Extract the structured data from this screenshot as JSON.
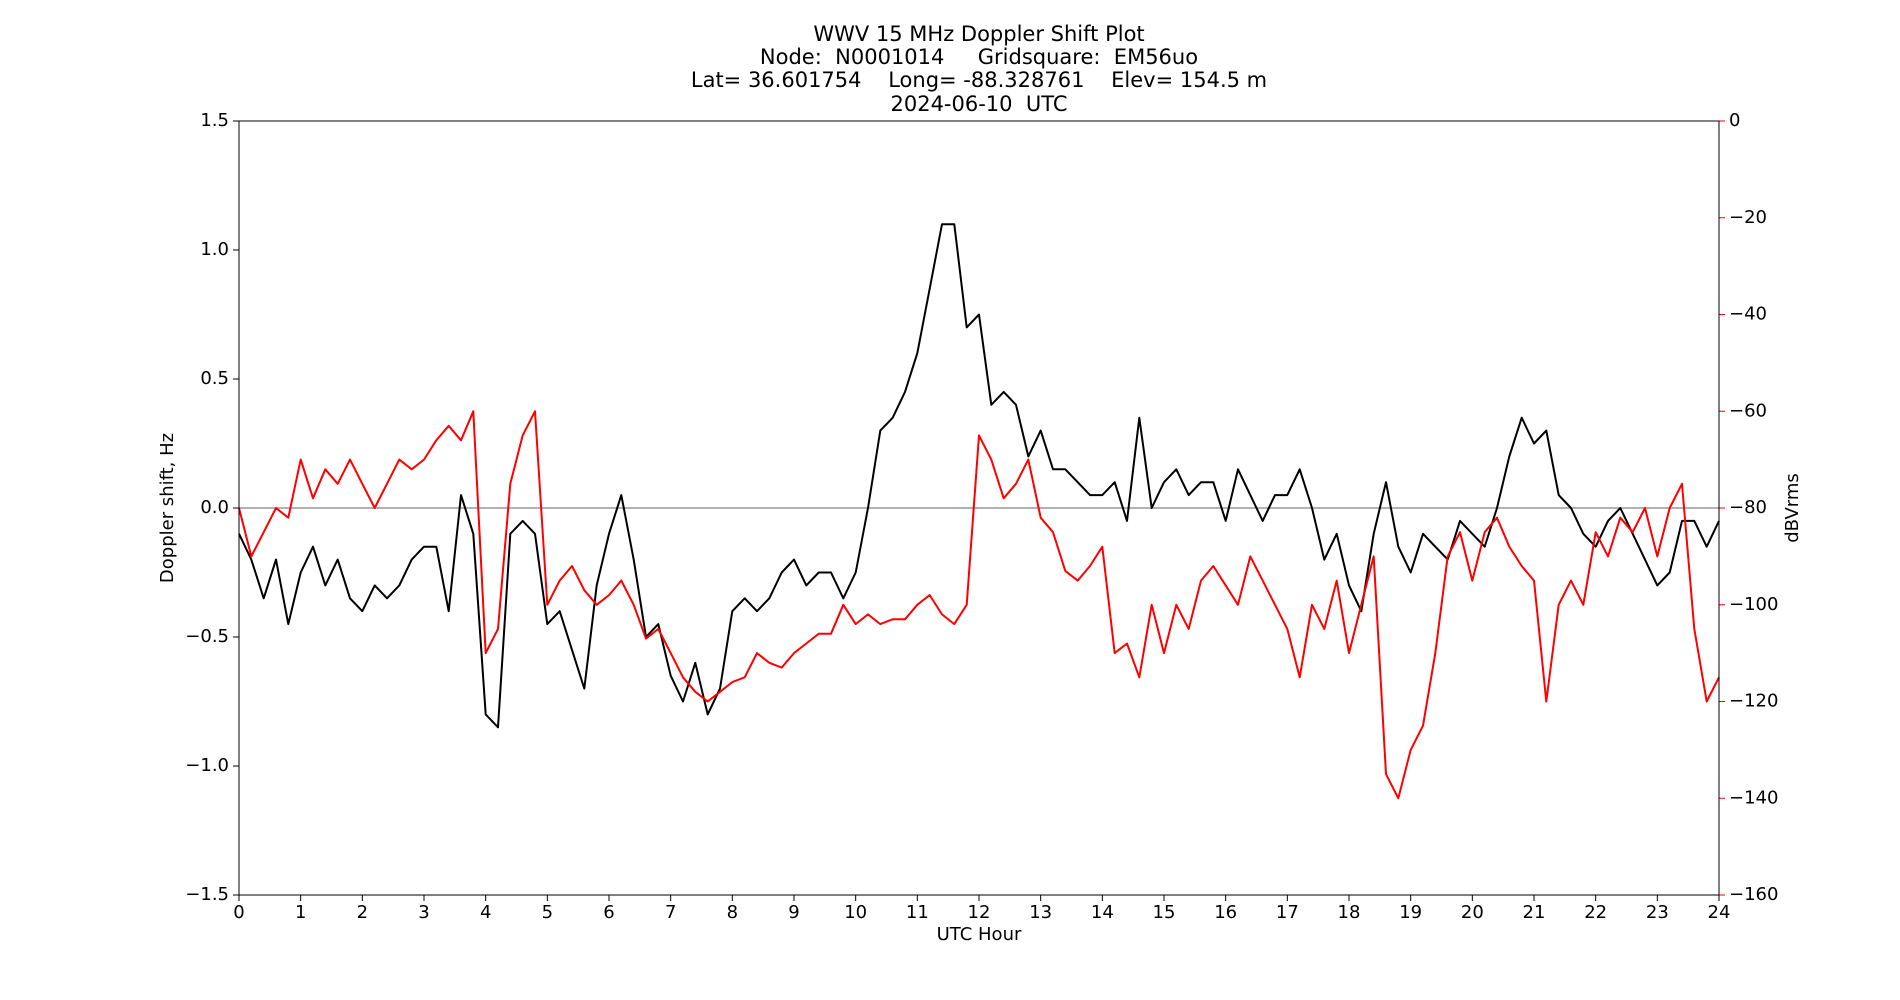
{
  "chart_data": {
    "type": "line",
    "title": "WWV 15 MHz Doppler Shift Plot",
    "subtitle": [
      "Node:  N0001014     Gridsquare:  EM56uo",
      "Lat= 36.601754    Long= -88.328761    Elev= 154.5 m",
      "2024-06-10  UTC"
    ],
    "xlabel": "UTC Hour",
    "ylabel": "Doppler shift, Hz",
    "y2label": "dBVrms",
    "y2color": "#ff0000",
    "xlim": [
      0,
      24
    ],
    "xticks": [
      0,
      1,
      2,
      3,
      4,
      5,
      6,
      7,
      8,
      9,
      10,
      11,
      12,
      13,
      14,
      15,
      16,
      17,
      18,
      19,
      20,
      21,
      22,
      23,
      24
    ],
    "ylim": [
      -1.5,
      1.5
    ],
    "yticks": [
      {
        "value": -1.5,
        "label": "−1.5"
      },
      {
        "value": -1.0,
        "label": "−1.0"
      },
      {
        "value": -0.5,
        "label": "−0.5"
      },
      {
        "value": 0,
        "label": "0.0"
      },
      0.5,
      {
        "value": 1.0,
        "label": "1.0"
      },
      1.5
    ],
    "y2lim": [
      -160,
      0
    ],
    "y2ticks": [
      {
        "value": -160,
        "label": "−160"
      },
      {
        "value": -140,
        "label": "−140"
      },
      {
        "value": -120,
        "label": "−120"
      },
      {
        "value": -100,
        "label": "−100"
      },
      {
        "value": -80,
        "label": "−80"
      },
      {
        "value": -60,
        "label": "−60"
      },
      {
        "value": -40,
        "label": "−40"
      },
      {
        "value": -20,
        "label": "−20"
      },
      0
    ],
    "x": [
      0,
      0.2,
      0.4,
      0.6,
      0.8,
      1,
      1.2,
      1.4,
      1.6,
      1.8,
      2,
      2.2,
      2.4,
      2.6,
      2.8,
      3,
      3.2,
      3.4,
      3.6,
      3.8,
      4,
      4.2,
      4.4,
      4.6,
      4.8,
      5,
      5.2,
      5.4,
      5.6,
      5.8,
      6,
      6.2,
      6.4,
      6.6,
      6.8,
      7,
      7.2,
      7.4,
      7.6,
      7.8,
      8,
      8.2,
      8.4,
      8.6,
      8.8,
      9,
      9.2,
      9.4,
      9.6,
      9.8,
      10,
      10.2,
      10.4,
      10.6,
      10.8,
      11,
      11.2,
      11.4,
      11.6,
      11.8,
      12,
      12.2,
      12.4,
      12.6,
      12.8,
      13,
      13.2,
      13.4,
      13.6,
      13.8,
      14,
      14.2,
      14.4,
      14.6,
      14.8,
      15,
      15.2,
      15.4,
      15.6,
      15.8,
      16,
      16.2,
      16.4,
      16.6,
      16.8,
      17,
      17.2,
      17.4,
      17.6,
      17.8,
      18,
      18.2,
      18.4,
      18.6,
      18.8,
      19,
      19.2,
      19.4,
      19.6,
      19.8,
      20,
      20.2,
      20.4,
      20.6,
      20.8,
      21,
      21.2,
      21.4,
      21.6,
      21.8,
      22,
      22.2,
      22.4,
      22.6,
      22.8,
      23,
      23.2,
      23.4,
      23.6,
      23.8,
      24
    ],
    "series": [
      {
        "color": "#000000",
        "values": [
          -0.1,
          -0.2,
          -0.35,
          -0.2,
          -0.45,
          -0.25,
          -0.15,
          -0.3,
          -0.2,
          -0.35,
          -0.4,
          -0.3,
          -0.35,
          -0.3,
          -0.2,
          -0.15,
          -0.15,
          -0.4,
          0.05,
          -0.1,
          -0.8,
          -0.85,
          -0.1,
          -0.05,
          -0.1,
          -0.45,
          -0.4,
          -0.55,
          -0.7,
          -0.3,
          -0.1,
          0.05,
          -0.2,
          -0.5,
          -0.45,
          -0.65,
          -0.75,
          -0.6,
          -0.8,
          -0.7,
          -0.4,
          -0.35,
          -0.4,
          -0.35,
          -0.25,
          -0.2,
          -0.3,
          -0.25,
          -0.25,
          -0.35,
          -0.25,
          0,
          0.3,
          0.35,
          0.45,
          0.6,
          0.85,
          1.1,
          1.1,
          0.7,
          0.75,
          0.4,
          0.45,
          0.4,
          0.2,
          0.3,
          0.15,
          0.15,
          0.1,
          0.05,
          0.05,
          0.1,
          -0.05,
          0.35,
          0,
          0.1,
          0.15,
          0.05,
          0.1,
          0.1,
          -0.05,
          0.15,
          0.05,
          -0.05,
          0.05,
          0.05,
          0.15,
          0,
          -0.2,
          -0.1,
          -0.3,
          -0.4,
          -0.1,
          0.1,
          -0.15,
          -0.25,
          -0.1,
          -0.15,
          -0.2,
          -0.05,
          -0.1,
          -0.15,
          0,
          0.2,
          0.35,
          0.25,
          0.3,
          0.05,
          0,
          -0.1,
          -0.15,
          -0.05,
          0,
          -0.1,
          -0.2,
          -0.3,
          -0.25,
          -0.05,
          -0.05,
          -0.15,
          -0.05
        ]
      },
      {
        "color": "#ff0000",
        "axis": "y2",
        "values": [
          -80,
          -90,
          -85,
          -80,
          -82,
          -70,
          -78,
          -72,
          -75,
          -70,
          -75,
          -80,
          -75,
          -70,
          -72,
          -70,
          -66,
          -63,
          -66,
          -60,
          -110,
          -105,
          -75,
          -65,
          -60,
          -100,
          -95,
          -92,
          -97,
          -100,
          -98,
          -95,
          -100,
          -107,
          -105,
          -110,
          -115,
          -118,
          -120,
          -118,
          -116,
          -115,
          -110,
          -112,
          -113,
          -110,
          -108,
          -106,
          -106,
          -100,
          -104,
          -102,
          -104,
          -103,
          -103,
          -100,
          -98,
          -102,
          -104,
          -100,
          -65,
          -70,
          -78,
          -75,
          -70,
          -82,
          -85,
          -93,
          -95,
          -92,
          -88,
          -110,
          -108,
          -115,
          -100,
          -110,
          -100,
          -105,
          -95,
          -92,
          -96,
          -100,
          -90,
          -95,
          -100,
          -105,
          -115,
          -100,
          -105,
          -95,
          -110,
          -100,
          -90,
          -135,
          -140,
          -130,
          -125,
          -110,
          -90,
          -85,
          -95,
          -85,
          -82,
          -88,
          -92,
          -95,
          -120,
          -100,
          -95,
          -100,
          -85,
          -90,
          -82,
          -85,
          -80,
          -90,
          -80,
          -75,
          -105,
          -120,
          -115
        ]
      }
    ]
  }
}
